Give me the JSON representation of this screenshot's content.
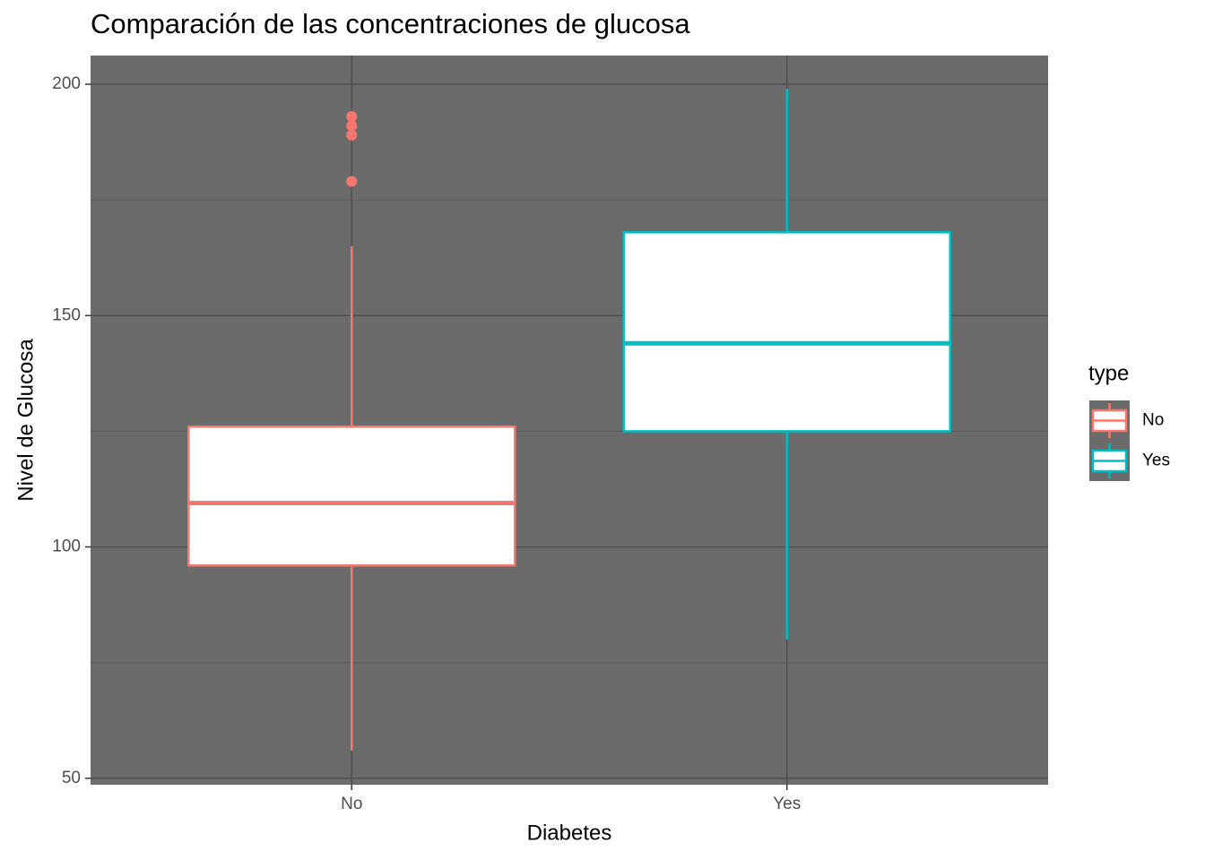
{
  "chart_data": {
    "type": "box",
    "title": "Comparación de las concentraciones de glucosa",
    "x_label": "Diabetes",
    "y_label": "Nivel de Glucosa",
    "categories": [
      "No",
      "Yes"
    ],
    "legend_title": "type",
    "legend_position": "right",
    "series": [
      {
        "name": "No",
        "color": "#F8766D",
        "min": 56,
        "q1": 96,
        "median": 109.5,
        "q3": 126,
        "max": 165,
        "outliers": [
          193,
          191,
          189,
          179
        ]
      },
      {
        "name": "Yes",
        "color": "#00BFC4",
        "min": 80,
        "q1": 125,
        "median": 144,
        "q3": 168,
        "max": 199,
        "outliers": []
      }
    ],
    "ylim": [
      48.6,
      206.2
    ],
    "yticks": [
      50,
      100,
      150,
      200
    ],
    "yminor": [
      75,
      125,
      175
    ],
    "grid": true,
    "background": "#6B6B6B",
    "box_fill": "#FFFFFF"
  }
}
